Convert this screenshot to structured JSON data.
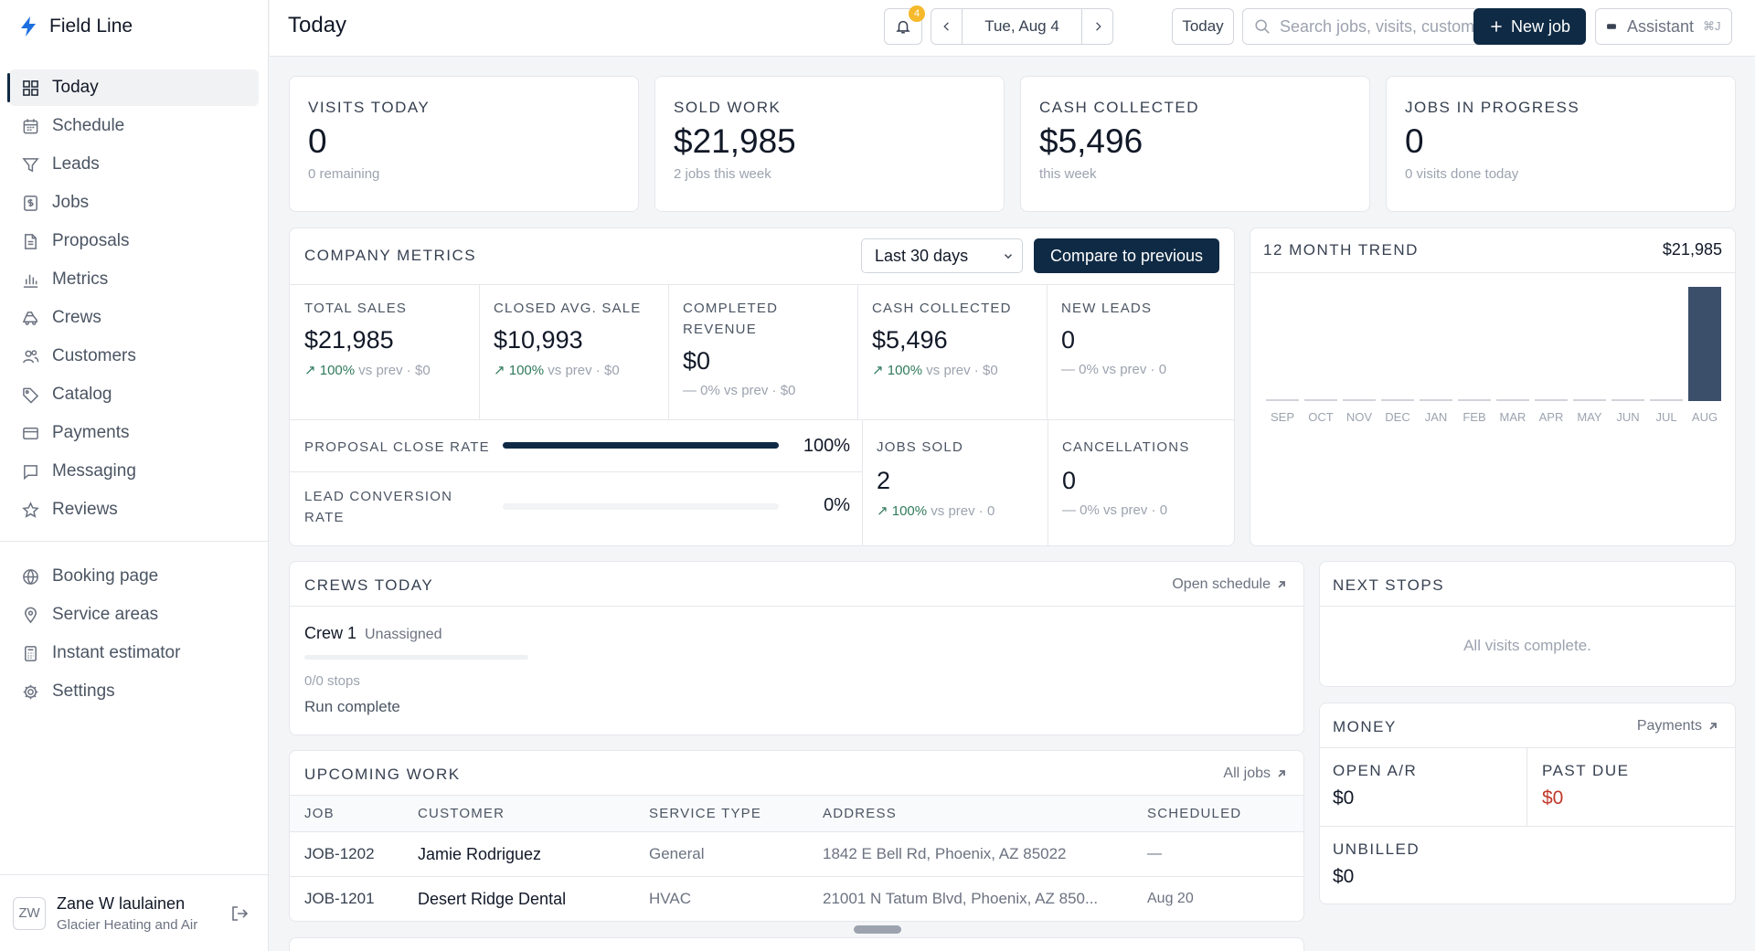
{
  "app": {
    "name": "Field Line"
  },
  "sidebar": {
    "items": [
      {
        "label": "Today",
        "icon": "grid-icon"
      },
      {
        "label": "Schedule",
        "icon": "calendar-icon"
      },
      {
        "label": "Leads",
        "icon": "filter-icon"
      },
      {
        "label": "Jobs",
        "icon": "dollar-doc-icon"
      },
      {
        "label": "Proposals",
        "icon": "document-icon"
      },
      {
        "label": "Metrics",
        "icon": "bar-chart-icon"
      },
      {
        "label": "Crews",
        "icon": "truck-icon"
      },
      {
        "label": "Customers",
        "icon": "users-icon"
      },
      {
        "label": "Catalog",
        "icon": "tag-icon"
      },
      {
        "label": "Payments",
        "icon": "credit-card-icon"
      },
      {
        "label": "Messaging",
        "icon": "chat-icon"
      },
      {
        "label": "Reviews",
        "icon": "star-icon"
      }
    ],
    "secondary": [
      {
        "label": "Booking page",
        "icon": "globe-icon"
      },
      {
        "label": "Service areas",
        "icon": "map-pin-icon"
      },
      {
        "label": "Instant estimator",
        "icon": "calculator-icon"
      },
      {
        "label": "Settings",
        "icon": "gear-icon"
      }
    ],
    "user": {
      "initials": "ZW",
      "name": "Zane W laulainen",
      "company": "Glacier Heating and Air"
    }
  },
  "topbar": {
    "title": "Today",
    "notifications_count": "4",
    "date": "Tue, Aug 4",
    "today_label": "Today",
    "search_placeholder": "Search jobs, visits, customers",
    "new_job_label": "New job",
    "assistant_label": "Assistant",
    "assistant_shortcut": "⌘J"
  },
  "kpis": [
    {
      "label": "VISITS TODAY",
      "value": "0",
      "sub": "0 remaining"
    },
    {
      "label": "SOLD WORK",
      "value": "$21,985",
      "sub": "2 jobs this week"
    },
    {
      "label": "CASH COLLECTED",
      "value": "$5,496",
      "sub": "this week"
    },
    {
      "label": "JOBS IN PROGRESS",
      "value": "0",
      "sub": "0 visits done today"
    }
  ],
  "company_metrics": {
    "title": "COMPANY METRICS",
    "period": "Last 30 days",
    "compare_label": "Compare to previous",
    "cells": [
      {
        "label": "TOTAL SALES",
        "value": "$21,985",
        "pct": "100%",
        "prev": "vs prev · $0",
        "trend": "up"
      },
      {
        "label": "CLOSED AVG. SALE",
        "value": "$10,993",
        "pct": "100%",
        "prev": "vs prev · $0",
        "trend": "up"
      },
      {
        "label": "COMPLETED REVENUE",
        "value": "$0",
        "pct": "0%",
        "prev": "vs prev · $0",
        "trend": "flat"
      },
      {
        "label": "CASH COLLECTED",
        "value": "$5,496",
        "pct": "100%",
        "prev": "vs prev · $0",
        "trend": "up"
      },
      {
        "label": "NEW LEADS",
        "value": "0",
        "pct": "0%",
        "prev": "vs prev · 0",
        "trend": "flat"
      }
    ],
    "rates": [
      {
        "label": "PROPOSAL CLOSE RATE",
        "value": "100%",
        "fraction": 1.0
      },
      {
        "label": "LEAD CONVERSION RATE",
        "value": "0%",
        "fraction": 0.0
      }
    ],
    "jobs_sold": {
      "label": "JOBS SOLD",
      "value": "2",
      "pct": "100%",
      "prev": "vs prev · 0"
    },
    "cancellations": {
      "label": "CANCELLATIONS",
      "value": "0",
      "pct": "0%",
      "prev": "vs prev · 0"
    }
  },
  "trend": {
    "title": "12 MONTH TREND",
    "total": "$21,985"
  },
  "chart_data": {
    "type": "bar",
    "categories": [
      "SEP",
      "OCT",
      "NOV",
      "DEC",
      "JAN",
      "FEB",
      "MAR",
      "APR",
      "MAY",
      "JUN",
      "JUL",
      "AUG"
    ],
    "values": [
      0,
      0,
      0,
      0,
      0,
      0,
      0,
      0,
      0,
      0,
      0,
      21985
    ],
    "title": "12 MONTH TREND",
    "ylim": [
      0,
      21985
    ],
    "grid": false,
    "bar_color": "#3b4f6b",
    "zero_color": "#d1d5db"
  },
  "crews_today": {
    "title": "CREWS TODAY",
    "link": "Open schedule",
    "crew_name": "Crew 1",
    "crew_status": "Unassigned",
    "progress_fraction": 0.0,
    "stops": "0/0 stops",
    "run_status": "Run complete"
  },
  "upcoming_work": {
    "title": "UPCOMING WORK",
    "link": "All jobs",
    "columns": [
      "JOB",
      "CUSTOMER",
      "SERVICE TYPE",
      "ADDRESS",
      "SCHEDULED"
    ],
    "rows": [
      [
        "JOB-1202",
        "Jamie Rodriguez",
        "General",
        "1842 E Bell Rd, Phoenix, AZ 85022",
        "—"
      ],
      [
        "JOB-1201",
        "Desert Ridge Dental",
        "HVAC",
        "21001 N Tatum Blvd, Phoenix, AZ 850...",
        "Aug 20"
      ]
    ]
  },
  "next_stops": {
    "title": "NEXT STOPS",
    "empty": "All visits complete."
  },
  "money": {
    "title": "MONEY",
    "link": "Payments",
    "open_ar_label": "OPEN A/R",
    "open_ar": "$0",
    "past_due_label": "PAST DUE",
    "past_due": "$0",
    "unbilled_label": "UNBILLED",
    "unbilled": "$0",
    "past_due_color": "#c0392b"
  },
  "colors": {
    "accent": "#0f2a44",
    "positive": "#2f7a5b",
    "badge": "#f5b92b"
  }
}
